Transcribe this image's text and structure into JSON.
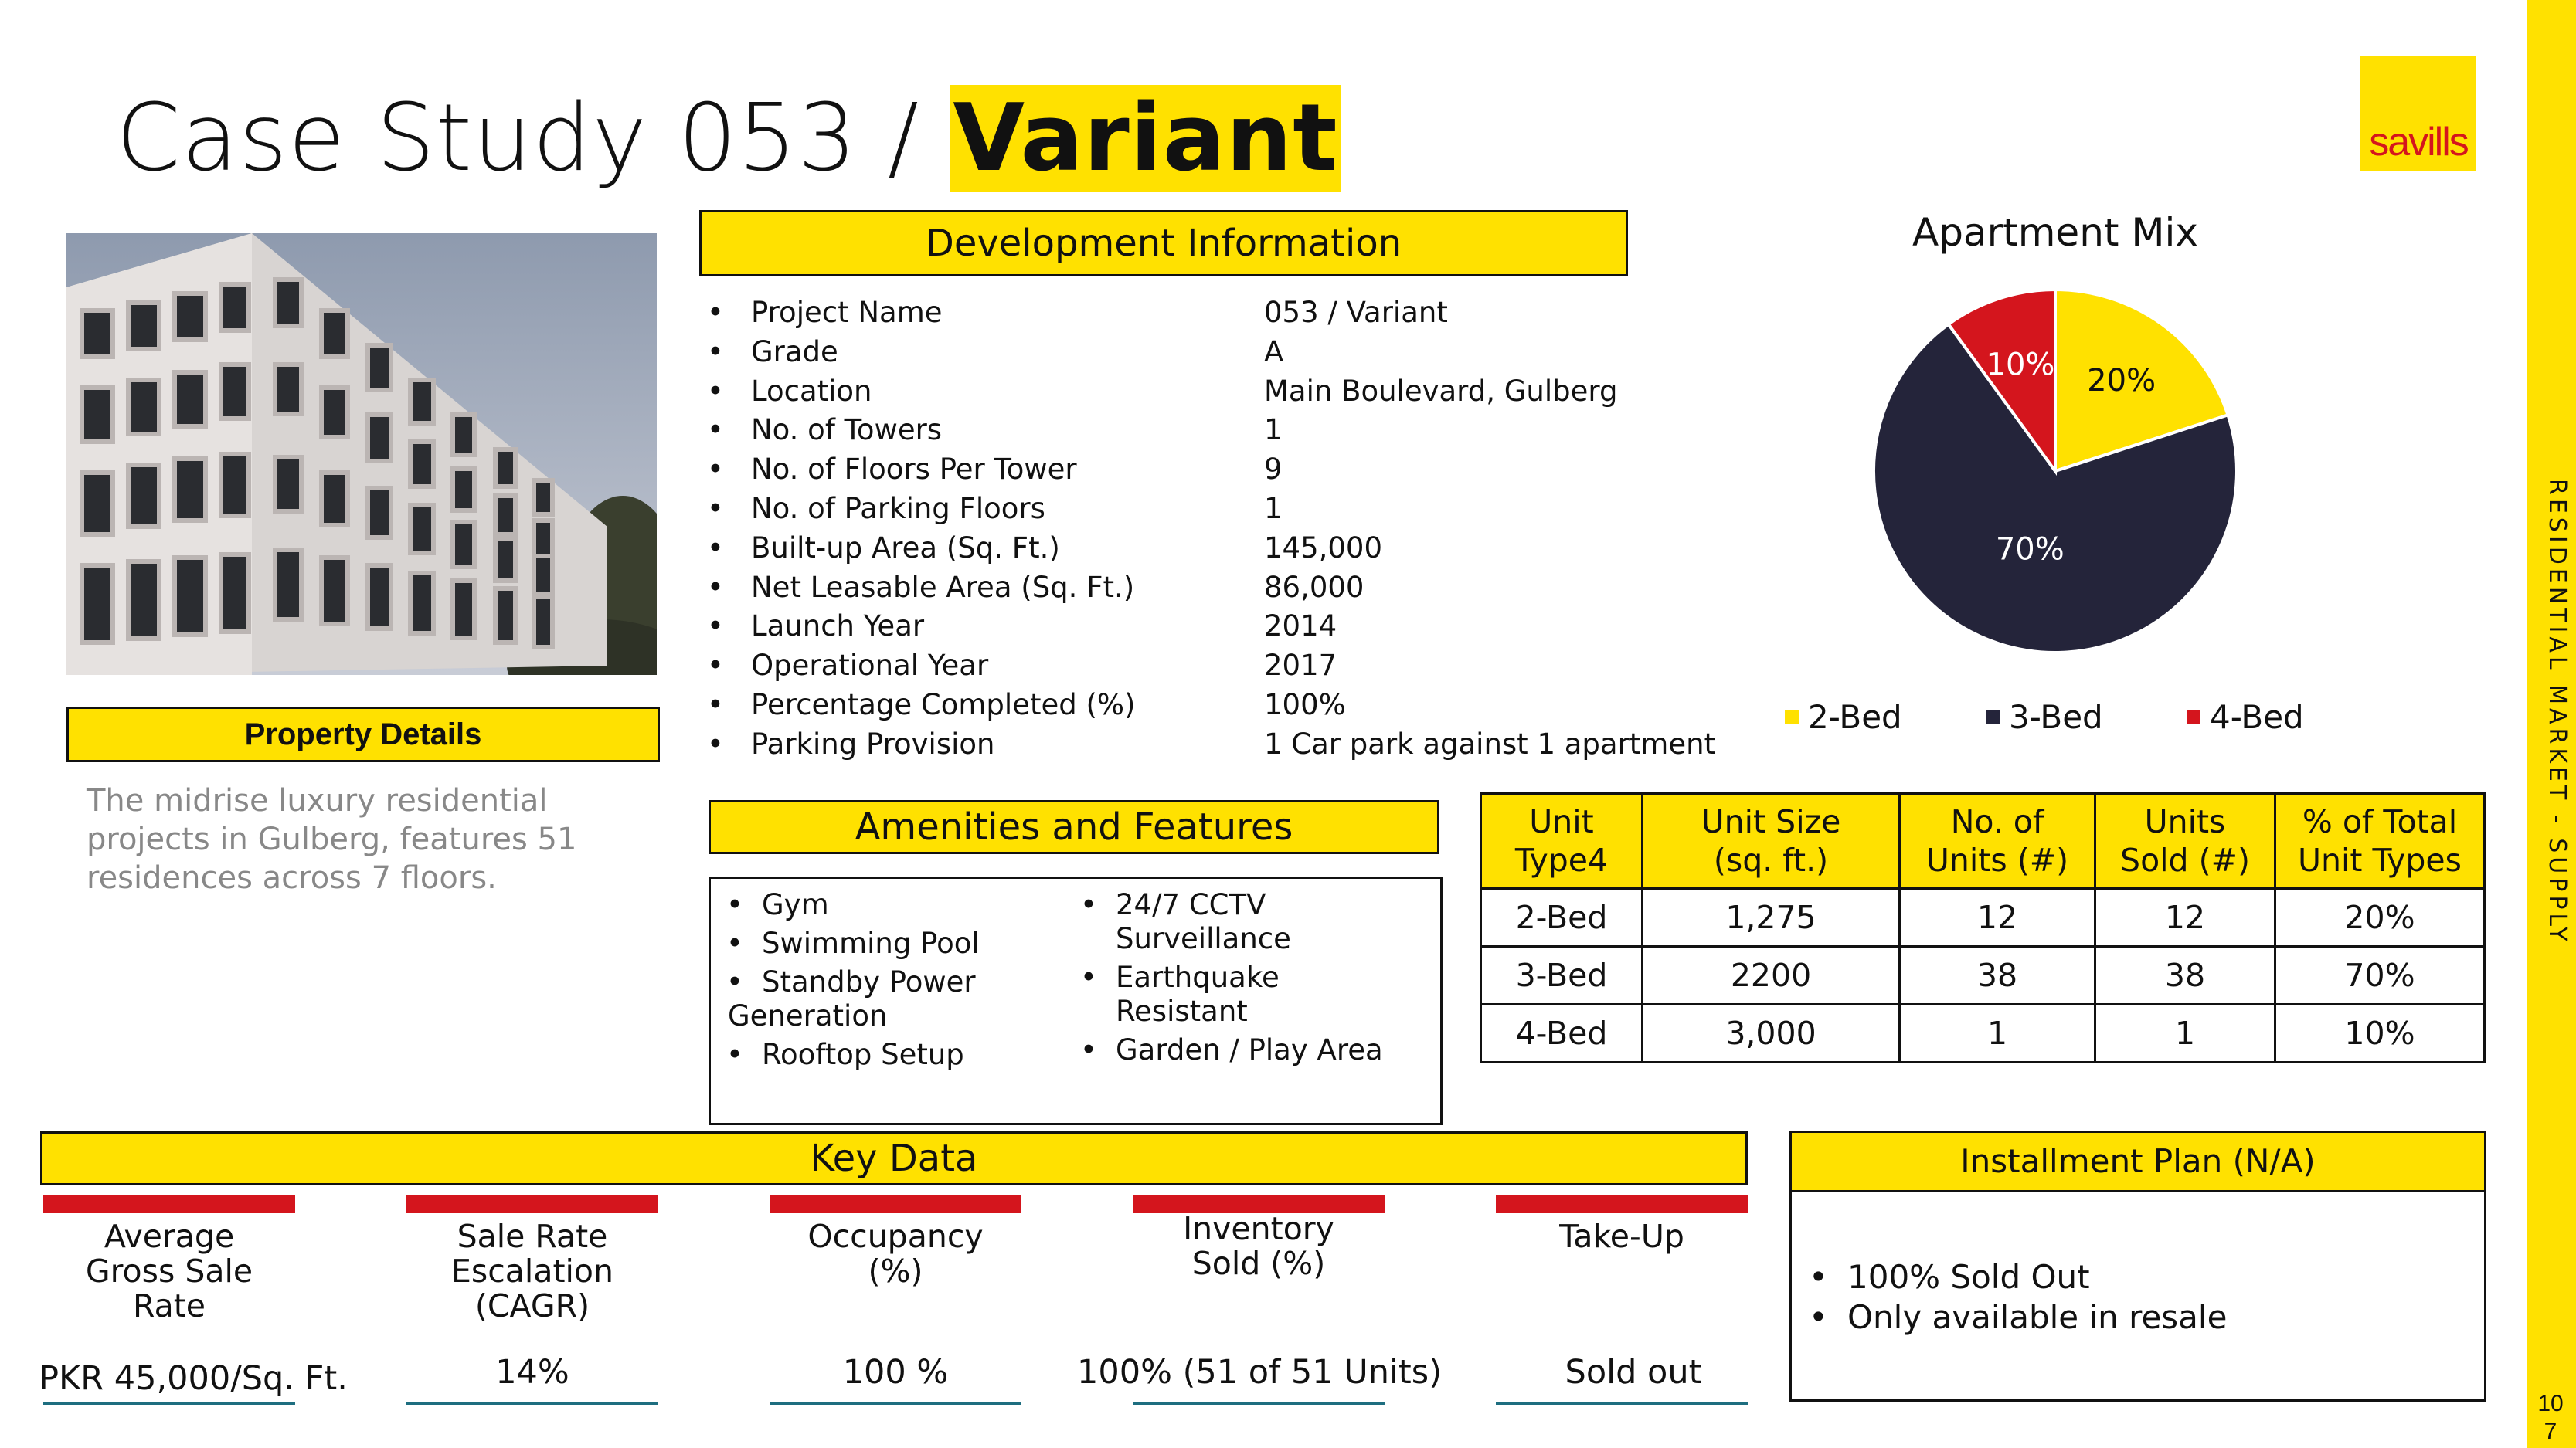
{
  "title": {
    "prefix": "Case Study 053 / ",
    "highlight": "Variant"
  },
  "brand": {
    "logo": "savills",
    "color": "#FFE100",
    "accent": "#D4151D"
  },
  "side_label": "RESIDENTIAL MARKET - SUPPLY",
  "page_number": "107",
  "property": {
    "heading": "Property Details",
    "description": "The midrise luxury residential projects in Gulberg, features 51 residences across 7 floors."
  },
  "development": {
    "heading": "Development Information",
    "bullet": "•",
    "rows": [
      {
        "key": "Project Name",
        "value": "053 / Variant"
      },
      {
        "key": "Grade",
        "value": "A"
      },
      {
        "key": "Location",
        "value": "Main Boulevard, Gulberg"
      },
      {
        "key": "No. of Towers",
        "value": "1"
      },
      {
        "key": "No. of Floors Per Tower",
        "value": "9"
      },
      {
        "key": "No. of Parking Floors",
        "value": "1"
      },
      {
        "key": "Built-up Area (Sq. Ft.)",
        "value": "145,000"
      },
      {
        "key": "Net Leasable Area (Sq. Ft.)",
        "value": "86,000"
      },
      {
        "key": "Launch Year",
        "value": "2014"
      },
      {
        "key": "Operational Year",
        "value": "2017"
      },
      {
        "key": "Percentage Completed (%)",
        "value": "100%"
      },
      {
        "key": "Parking Provision",
        "value": "1 Car park against 1 apartment"
      }
    ]
  },
  "chart_data": {
    "type": "pie",
    "title": "Apartment Mix",
    "categories": [
      "2-Bed",
      "3-Bed",
      "4-Bed"
    ],
    "values": [
      20,
      70,
      10
    ],
    "labels": [
      "20%",
      "70%",
      "10%"
    ],
    "colors": [
      "#FFE100",
      "#24243A",
      "#D4151D"
    ],
    "label_colors": [
      "#111111",
      "#ffffff",
      "#ffffff"
    ],
    "legend": "bottom"
  },
  "amenities": {
    "heading": "Amenities and Features",
    "left": [
      "Gym",
      "Swimming Pool",
      "Standby Power",
      "Generation",
      "Rooftop Setup"
    ],
    "right": [
      "24/7 CCTV",
      "Surveillance",
      "Earthquake Resistant",
      "Garden / Play Area"
    ]
  },
  "units_table": {
    "headers": [
      [
        "Unit",
        "Type4"
      ],
      [
        "Unit Size",
        "(sq. ft.)"
      ],
      [
        "No. of",
        "Units (#)"
      ],
      [
        "Units",
        "Sold (#)"
      ],
      [
        "% of Total",
        "Unit Types"
      ]
    ],
    "rows": [
      [
        "2-Bed",
        "1,275",
        "12",
        "12",
        "20%"
      ],
      [
        "3-Bed",
        "2200",
        "38",
        "38",
        "70%"
      ],
      [
        "4-Bed",
        "3,000",
        "1",
        "1",
        "10%"
      ]
    ]
  },
  "key_data": {
    "heading": "Key Data",
    "items": [
      {
        "label": [
          "Average",
          "Gross Sale",
          "Rate"
        ],
        "value": "PKR 45,000/Sq. Ft."
      },
      {
        "label": [
          "Sale Rate",
          "Escalation",
          "(CAGR)"
        ],
        "value": "14%"
      },
      {
        "label": [
          "Occupancy",
          "(%)"
        ],
        "value": "100 %"
      },
      {
        "label": [
          "Inventory",
          "Sold (%)"
        ],
        "value": "100% (51 of 51 Units)"
      },
      {
        "label": [
          "Take-Up"
        ],
        "value": "Sold out"
      }
    ]
  },
  "installment": {
    "heading": "Installment Plan (N/A)",
    "items": [
      "100% Sold Out",
      "Only available in resale"
    ]
  }
}
